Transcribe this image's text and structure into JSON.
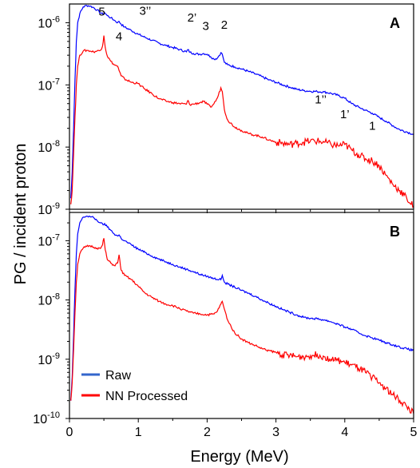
{
  "chart_data": [
    {
      "type": "line",
      "panel_label": "A",
      "xlabel": "Energy (MeV)",
      "ylabel": "PG / incident proton",
      "xlim": [
        0,
        5
      ],
      "ylim": [
        1e-09,
        2e-06
      ],
      "yscale": "log",
      "grid": false,
      "x_ticks": [
        "0",
        "1",
        "2",
        "3",
        "4",
        "5"
      ],
      "y_ticks": [
        {
          "value": 1e-06,
          "base": "10",
          "exp": "-6"
        },
        {
          "value": 1e-07,
          "base": "10",
          "exp": "-7"
        },
        {
          "value": 1e-08,
          "base": "10",
          "exp": "-8"
        },
        {
          "value": 1e-09,
          "base": "10",
          "exp": "-9"
        }
      ],
      "annotations": [
        {
          "text": "5",
          "x": 0.47,
          "y": 1.3e-06
        },
        {
          "text": "4",
          "x": 0.72,
          "y": 5.2e-07
        },
        {
          "text": "3’’",
          "x": 1.1,
          "y": 1.35e-06
        },
        {
          "text": "2’",
          "x": 1.78,
          "y": 1.05e-06
        },
        {
          "text": "3",
          "x": 1.98,
          "y": 7.6e-07
        },
        {
          "text": "2",
          "x": 2.25,
          "y": 8e-07
        },
        {
          "text": "1’’",
          "x": 3.65,
          "y": 5e-08
        },
        {
          "text": "1’",
          "x": 4.0,
          "y": 2.9e-08
        },
        {
          "text": "1",
          "x": 4.4,
          "y": 1.9e-08
        }
      ],
      "series": [
        {
          "name": "Raw",
          "color": "#0000ff",
          "x": [
            0.02,
            0.04,
            0.06,
            0.08,
            0.1,
            0.12,
            0.15,
            0.2,
            0.25,
            0.3,
            0.35,
            0.4,
            0.45,
            0.49,
            0.51,
            0.55,
            0.6,
            0.65,
            0.7,
            0.72,
            0.75,
            0.8,
            0.9,
            1.0,
            1.1,
            1.2,
            1.3,
            1.4,
            1.5,
            1.6,
            1.7,
            1.72,
            1.75,
            1.8,
            1.9,
            1.95,
            2.0,
            2.05,
            2.1,
            2.15,
            2.2,
            2.22,
            2.25,
            2.3,
            2.4,
            2.5,
            2.6,
            2.7,
            2.8,
            2.9,
            3.0,
            3.1,
            3.2,
            3.3,
            3.4,
            3.5,
            3.6,
            3.7,
            3.8,
            3.9,
            4.0,
            4.1,
            4.2,
            4.3,
            4.4,
            4.5,
            4.6,
            4.7,
            4.8,
            4.9,
            5.0
          ],
          "y": [
            1.5e-09,
            4e-09,
            2e-08,
            1.2e-07,
            5e-07,
            1e-06,
            1.4e-06,
            1.8e-06,
            1.9e-06,
            1.85e-06,
            1.75e-06,
            1.6e-06,
            1.45e-06,
            1.35e-06,
            1.45e-06,
            1.3e-06,
            1.2e-06,
            1.1e-06,
            1e-06,
            1.05e-06,
            9.5e-07,
            8.5e-07,
            7.5e-07,
            6.5e-07,
            5.8e-07,
            5.2e-07,
            4.7e-07,
            4.3e-07,
            4e-07,
            3.7e-07,
            3.4e-07,
            3.7e-07,
            3.35e-07,
            3.2e-07,
            3.1e-07,
            3.2e-07,
            3.1e-07,
            2.85e-07,
            2.6e-07,
            2.7e-07,
            3.3e-07,
            3.1e-07,
            2.3e-07,
            2.1e-07,
            1.95e-07,
            1.8e-07,
            1.65e-07,
            1.5e-07,
            1.35e-07,
            1.2e-07,
            1.1e-07,
            1e-07,
            9.2e-08,
            8.5e-08,
            8.1e-08,
            7.9e-08,
            7.8e-08,
            7.7e-08,
            7.3e-08,
            6.8e-08,
            6.1e-08,
            5e-08,
            4.4e-08,
            3.9e-08,
            3.5e-08,
            3e-08,
            2.6e-08,
            2.2e-08,
            1.9e-08,
            1.75e-08,
            1.6e-08
          ]
        },
        {
          "name": "NN Processed",
          "color": "#ff0000",
          "x": [
            0.02,
            0.04,
            0.06,
            0.08,
            0.1,
            0.12,
            0.15,
            0.2,
            0.25,
            0.3,
            0.35,
            0.4,
            0.45,
            0.48,
            0.5,
            0.52,
            0.55,
            0.6,
            0.65,
            0.7,
            0.72,
            0.75,
            0.8,
            0.9,
            1.0,
            1.02,
            1.1,
            1.2,
            1.3,
            1.4,
            1.5,
            1.6,
            1.7,
            1.72,
            1.75,
            1.8,
            1.9,
            1.95,
            2.0,
            2.05,
            2.1,
            2.15,
            2.2,
            2.22,
            2.25,
            2.3,
            2.4,
            2.5,
            2.6,
            2.7,
            2.8,
            2.9,
            3.0,
            3.1,
            3.2,
            3.3,
            3.4,
            3.5,
            3.6,
            3.7,
            3.8,
            3.9,
            4.0,
            4.1,
            4.2,
            4.3,
            4.4,
            4.5,
            4.6,
            4.7,
            4.8,
            4.9,
            5.0
          ],
          "y": [
            1.2e-09,
            2e-09,
            8e-09,
            3e-08,
            1e-07,
            2e-07,
            3e-07,
            3.5e-07,
            3.6e-07,
            3.5e-07,
            3.4e-07,
            3.5e-07,
            3.6e-07,
            4.2e-07,
            6.2e-07,
            4e-07,
            2.9e-07,
            2.4e-07,
            2.1e-07,
            2e-07,
            1.7e-07,
            1.4e-07,
            1.25e-07,
            1.1e-07,
            1.05e-07,
            1e-07,
            8.5e-08,
            7.2e-08,
            6e-08,
            5.5e-08,
            5.2e-08,
            5e-08,
            4.9e-08,
            5.6e-08,
            4.8e-08,
            4.9e-08,
            5.2e-08,
            5.4e-08,
            4.9e-08,
            4.4e-08,
            5e-08,
            6.2e-08,
            9e-08,
            7.8e-08,
            4e-08,
            2.7e-08,
            2.1e-08,
            1.85e-08,
            1.65e-08,
            1.55e-08,
            1.45e-08,
            1.3e-08,
            1.2e-08,
            1.15e-08,
            1.1e-08,
            1.15e-08,
            1.2e-08,
            1.25e-08,
            1.25e-08,
            1.2e-08,
            1.1e-08,
            1.05e-08,
            1.1e-08,
            9e-09,
            7.5e-09,
            6.5e-09,
            6e-09,
            5e-09,
            3.5e-09,
            2.5e-09,
            2e-09,
            1.5e-09,
            1.1e-09
          ]
        }
      ]
    },
    {
      "type": "line",
      "panel_label": "B",
      "xlabel": "Energy (MeV)",
      "ylabel": "PG / incident proton",
      "xlim": [
        0,
        5
      ],
      "ylim": [
        1e-10,
        3e-07
      ],
      "yscale": "log",
      "grid": false,
      "legend_position": "bottom-left",
      "x_ticks": [
        "0",
        "1",
        "2",
        "3",
        "4",
        "5"
      ],
      "y_ticks": [
        {
          "value": 1e-07,
          "base": "10",
          "exp": "-7"
        },
        {
          "value": 1e-08,
          "base": "10",
          "exp": "-8"
        },
        {
          "value": 1e-09,
          "base": "10",
          "exp": "-9"
        },
        {
          "value": 1e-10,
          "base": "10",
          "exp": "-10"
        }
      ],
      "series": [
        {
          "name": "Raw",
          "color": "#0000ff",
          "x": [
            0.02,
            0.04,
            0.06,
            0.08,
            0.1,
            0.12,
            0.15,
            0.2,
            0.25,
            0.3,
            0.35,
            0.4,
            0.45,
            0.49,
            0.51,
            0.55,
            0.6,
            0.65,
            0.7,
            0.72,
            0.75,
            0.8,
            0.9,
            1.0,
            1.1,
            1.2,
            1.3,
            1.4,
            1.5,
            1.6,
            1.7,
            1.8,
            1.9,
            2.0,
            2.1,
            2.2,
            2.22,
            2.25,
            2.3,
            2.4,
            2.5,
            2.6,
            2.7,
            2.8,
            2.9,
            3.0,
            3.1,
            3.2,
            3.3,
            3.4,
            3.5,
            3.6,
            3.7,
            3.8,
            3.9,
            4.0,
            4.1,
            4.2,
            4.3,
            4.4,
            4.5,
            4.6,
            4.7,
            4.8,
            4.9,
            5.0
          ],
          "y": [
            2e-10,
            5e-10,
            2.5e-09,
            1.5e-08,
            6e-08,
            1.3e-07,
            2e-07,
            2.5e-07,
            2.6e-07,
            2.55e-07,
            2.45e-07,
            2.2e-07,
            2e-07,
            1.85e-07,
            1.95e-07,
            1.7e-07,
            1.5e-07,
            1.3e-07,
            1.2e-07,
            1.25e-07,
            1.1e-07,
            1e-07,
            8.5e-08,
            7.2e-08,
            6.3e-08,
            5.5e-08,
            4.9e-08,
            4.4e-08,
            4e-08,
            3.6e-08,
            3.3e-08,
            3e-08,
            2.7e-08,
            2.5e-08,
            2.3e-08,
            2.2e-08,
            2.6e-08,
            2e-08,
            1.85e-08,
            1.65e-08,
            1.45e-08,
            1.3e-08,
            1.15e-08,
            1e-08,
            8.8e-09,
            7.8e-09,
            6.9e-09,
            6.2e-09,
            5.6e-09,
            5.1e-09,
            4.9e-09,
            4.8e-09,
            4.6e-09,
            4.3e-09,
            3.9e-09,
            3.5e-09,
            3.2e-09,
            2.8e-09,
            2.5e-09,
            2.3e-09,
            2.1e-09,
            1.9e-09,
            1.75e-09,
            1.6e-09,
            1.5e-09,
            1.4e-09
          ]
        },
        {
          "name": "NN Processed",
          "color": "#ff0000",
          "x": [
            0.02,
            0.04,
            0.06,
            0.08,
            0.1,
            0.12,
            0.15,
            0.2,
            0.25,
            0.3,
            0.35,
            0.4,
            0.45,
            0.48,
            0.5,
            0.52,
            0.55,
            0.6,
            0.65,
            0.7,
            0.72,
            0.75,
            0.8,
            0.9,
            1.0,
            1.1,
            1.2,
            1.3,
            1.4,
            1.5,
            1.6,
            1.7,
            1.8,
            1.9,
            2.0,
            2.1,
            2.15,
            2.2,
            2.22,
            2.25,
            2.3,
            2.4,
            2.5,
            2.6,
            2.7,
            2.8,
            2.9,
            3.0,
            3.1,
            3.2,
            3.3,
            3.4,
            3.5,
            3.6,
            3.7,
            3.8,
            3.9,
            4.0,
            4.1,
            4.2,
            4.3,
            4.4,
            4.5,
            4.6,
            4.7,
            4.8,
            4.9,
            5.0
          ],
          "y": [
            2e-10,
            4e-10,
            1.5e-09,
            6e-09,
            2e-08,
            4e-08,
            6e-08,
            7.5e-08,
            8e-08,
            8.2e-08,
            7.8e-08,
            7.5e-08,
            7.4e-08,
            8.5e-08,
            1.1e-07,
            7e-08,
            4.8e-08,
            4.2e-08,
            3.8e-08,
            4.2e-08,
            5.8e-08,
            3.2e-08,
            2.6e-08,
            2.2e-08,
            1.7e-08,
            1.3e-08,
            1.1e-08,
            9.5e-09,
            8.5e-09,
            8e-09,
            7.2e-09,
            6.5e-09,
            6e-09,
            5.8e-09,
            5.6e-09,
            5.8e-09,
            6.5e-09,
            8.5e-09,
            9.5e-09,
            7e-09,
            4.5e-09,
            2.8e-09,
            2.2e-09,
            1.9e-09,
            1.7e-09,
            1.5e-09,
            1.4e-09,
            1.3e-09,
            1.2e-09,
            1.15e-09,
            1.1e-09,
            1.1e-09,
            1.15e-09,
            1.2e-09,
            1.1e-09,
            1e-09,
            9.5e-10,
            8.8e-10,
            8e-10,
            7e-10,
            6e-10,
            5e-10,
            4e-10,
            3.2e-10,
            2.5e-10,
            2e-10,
            1.6e-10,
            1.2e-10
          ]
        }
      ]
    }
  ],
  "legend": {
    "items": [
      {
        "label": "Raw",
        "color": "#3366cc"
      },
      {
        "label": "NN Processed",
        "color": "#ff0000"
      }
    ]
  }
}
